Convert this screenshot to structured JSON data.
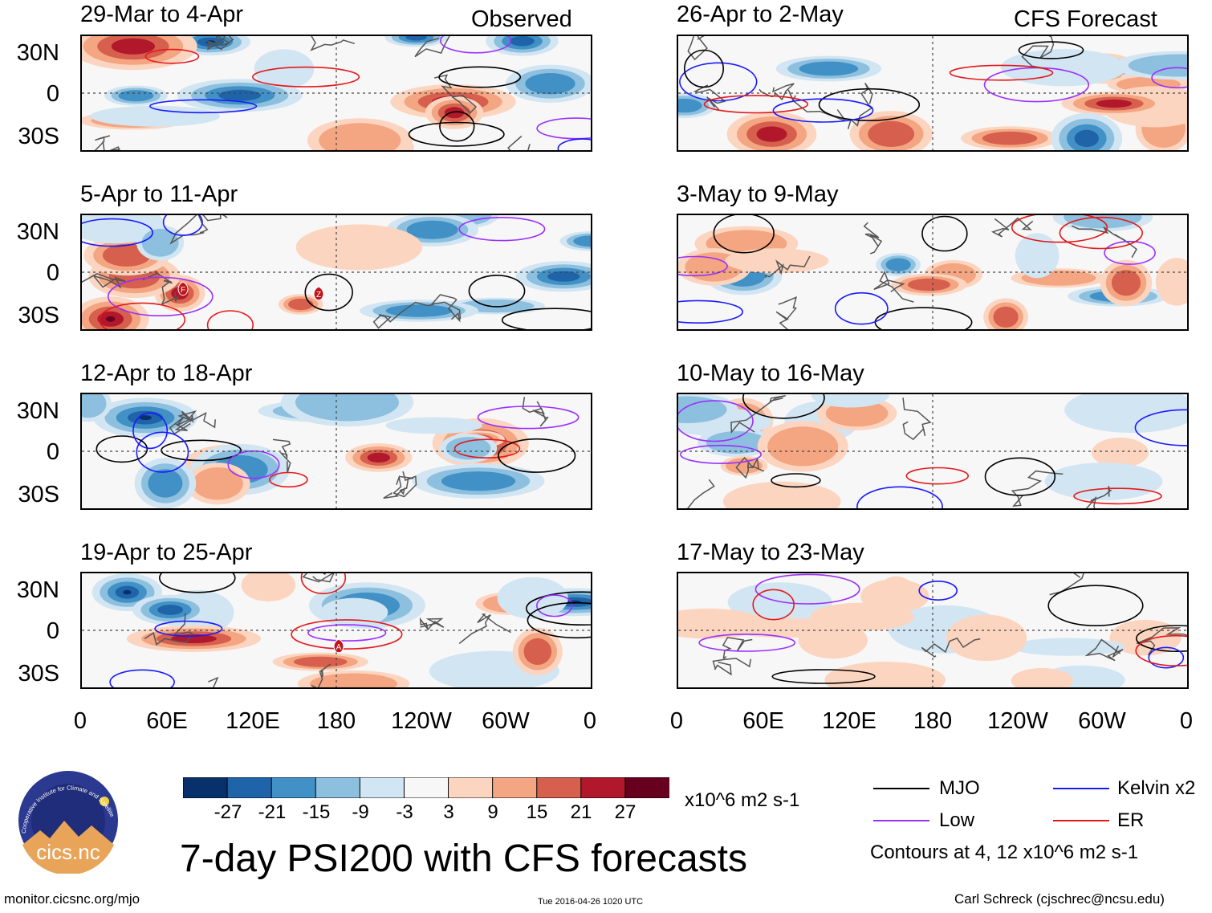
{
  "header": {
    "left_title": "Observed",
    "right_title": "CFS Forecast"
  },
  "panels": {
    "observed": [
      {
        "period": "29-Mar to 4-Apr"
      },
      {
        "period": "5-Apr to 11-Apr"
      },
      {
        "period": "12-Apr to 18-Apr"
      },
      {
        "period": "19-Apr to 25-Apr"
      }
    ],
    "forecast": [
      {
        "period": "26-Apr to 2-May"
      },
      {
        "period": "3-May to 9-May"
      },
      {
        "period": "10-May to 16-May"
      },
      {
        "period": "17-May to 23-May"
      }
    ]
  },
  "axes": {
    "lat_labels": [
      "30N",
      "0",
      "30S"
    ],
    "lon_labels": [
      "0",
      "60E",
      "120E",
      "180",
      "120W",
      "60W",
      "0"
    ]
  },
  "storm_markers": [
    {
      "label": "F"
    },
    {
      "label": "Z"
    },
    {
      "label": "A"
    }
  ],
  "colorbar": {
    "colors": [
      "#08306b",
      "#1f64a8",
      "#4191c6",
      "#8cc0de",
      "#d2e5f2",
      "#f7f7f7",
      "#fcd5c0",
      "#f4a582",
      "#d6604d",
      "#b2182b",
      "#67001f"
    ],
    "ticks": [
      "-27",
      "-21",
      "-15",
      "-9",
      "-3",
      "3",
      "9",
      "15",
      "21",
      "27"
    ],
    "units": "x10^6 m2 s-1"
  },
  "legend": {
    "items": [
      {
        "label": "MJO",
        "color": "#000000"
      },
      {
        "label": "Kelvin x2",
        "color": "#1a1aff"
      },
      {
        "label": "Low",
        "color": "#9b30ff"
      },
      {
        "label": "ER",
        "color": "#e31a1c"
      }
    ],
    "contours_note": "Contours at 4, 12 x10^6 m2 s-1"
  },
  "logo": {
    "arc_text": "Cooperative Institute for Climate and Satellites",
    "name": "cics.nc"
  },
  "title": "7-day PSI200 with CFS forecasts",
  "footer": {
    "url": "monitor.cicsnc.org/mjo",
    "timestamp": "Tue 2016-04-26 1020 UTC",
    "author": "Carl Schreck (cjschrec@ncsu.edu)"
  }
}
